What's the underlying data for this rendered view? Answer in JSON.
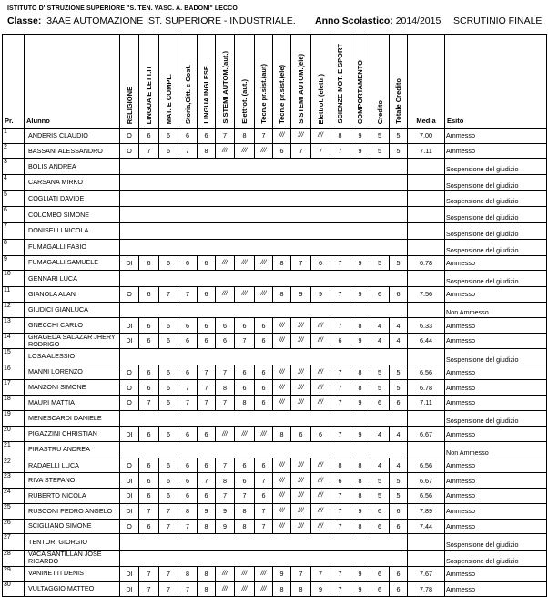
{
  "header": {
    "school": "ISTITUTO D'ISTRUZIONE SUPERIORE \"S. TEN. VASC. A. BADONI\" LECCO",
    "class_label": "Classe:",
    "class_value": "3AAE AUTOMAZIONE IST. SUPERIORE - INDUSTRIALE.",
    "year_label": "Anno Scolastico:",
    "year_value": "2014/2015",
    "title": "SCRUTINIO FINALE"
  },
  "columns": {
    "pr": "Pr.",
    "alunno": "Alunno",
    "subjects": [
      "RELIGIONE",
      "LINGUA E LETT.IT",
      "MAT. E COMPL.",
      "Storia,Citt. e Cost.",
      "LINGUA INGLESE.",
      "SISTEMI AUTOM.(aut.)",
      "Elettrot. (aut.)",
      "Tecn.e pr.sist.(aut)",
      "Tecn.e pr.sist.(ele)",
      "SISTEMI AUTOM.(ele)",
      "Elettrot. (elettr.)",
      "SCIENZE MOT. E SPORT",
      "COMPORTAMENTO",
      "Credito",
      "Totale Credito"
    ],
    "media": "Media",
    "esito": "Esito"
  },
  "rows": [
    {
      "n": "1",
      "name": "ANDERIS CLAUDIO",
      "grades": [
        "O",
        "6",
        "6",
        "6",
        "6",
        "7",
        "8",
        "7",
        "///",
        "///",
        "///",
        "8",
        "9",
        "5",
        "5"
      ],
      "media": "7.00",
      "esito": "Ammesso"
    },
    {
      "n": "2",
      "name": "BASSANI ALESSANDRO",
      "grades": [
        "O",
        "7",
        "6",
        "7",
        "8",
        "///",
        "///",
        "///",
        "6",
        "7",
        "7",
        "7",
        "9",
        "5",
        "5"
      ],
      "media": "7.11",
      "esito": "Ammesso"
    },
    {
      "n": "3",
      "name": "BOLIS ANDREA",
      "grades": null,
      "media": "",
      "esito": "Sospensione del giudizio"
    },
    {
      "n": "4",
      "name": "CARSANA MIRKO",
      "grades": null,
      "media": "",
      "esito": "Sospensione del giudizio"
    },
    {
      "n": "5",
      "name": "COGLIATI DAVIDE",
      "grades": null,
      "media": "",
      "esito": "Sospensione del giudizio"
    },
    {
      "n": "6",
      "name": "COLOMBO SIMONE",
      "grades": null,
      "media": "",
      "esito": "Sospensione del giudizio"
    },
    {
      "n": "7",
      "name": "DONISELLI NICOLA",
      "grades": null,
      "media": "",
      "esito": "Sospensione del giudizio"
    },
    {
      "n": "8",
      "name": "FUMAGALLI FABIO",
      "grades": null,
      "media": "",
      "esito": "Sospensione del giudizio"
    },
    {
      "n": "9",
      "name": "FUMAGALLI SAMUELE",
      "grades": [
        "DI",
        "6",
        "6",
        "6",
        "6",
        "///",
        "///",
        "///",
        "8",
        "7",
        "6",
        "7",
        "9",
        "5",
        "5"
      ],
      "media": "6.78",
      "esito": "Ammesso"
    },
    {
      "n": "10",
      "name": "GENNARI LUCA",
      "grades": null,
      "media": "",
      "esito": "Sospensione del giudizio"
    },
    {
      "n": "11",
      "name": "GIANOLA ALAN",
      "grades": [
        "O",
        "6",
        "7",
        "7",
        "6",
        "///",
        "///",
        "///",
        "8",
        "9",
        "9",
        "7",
        "9",
        "6",
        "6"
      ],
      "media": "7.56",
      "esito": "Ammesso"
    },
    {
      "n": "12",
      "name": "GIUDICI GIANLUCA",
      "grades": null,
      "media": "",
      "esito": "Non Ammesso"
    },
    {
      "n": "13",
      "name": "GNECCHI CARLO",
      "grades": [
        "DI",
        "6",
        "6",
        "6",
        "6",
        "6",
        "6",
        "6",
        "///",
        "///",
        "///",
        "7",
        "8",
        "4",
        "4"
      ],
      "media": "6.33",
      "esito": "Ammesso"
    },
    {
      "n": "14",
      "name": "GRAGEDA SALAZAR JHERY RODRIGO",
      "grades": [
        "DI",
        "6",
        "6",
        "6",
        "6",
        "6",
        "7",
        "6",
        "///",
        "///",
        "///",
        "6",
        "9",
        "4",
        "4"
      ],
      "media": "6.44",
      "esito": "Ammesso"
    },
    {
      "n": "15",
      "name": "LOSA ALESSIO",
      "grades": null,
      "media": "",
      "esito": "Sospensione del giudizio"
    },
    {
      "n": "16",
      "name": "MANNI LORENZO",
      "grades": [
        "O",
        "6",
        "6",
        "6",
        "7",
        "7",
        "6",
        "6",
        "///",
        "///",
        "///",
        "7",
        "8",
        "5",
        "5"
      ],
      "media": "6.56",
      "esito": "Ammesso"
    },
    {
      "n": "17",
      "name": "MANZONI SIMONE",
      "grades": [
        "O",
        "6",
        "6",
        "7",
        "7",
        "8",
        "6",
        "6",
        "///",
        "///",
        "///",
        "7",
        "8",
        "5",
        "5"
      ],
      "media": "6.78",
      "esito": "Ammesso"
    },
    {
      "n": "18",
      "name": "MAURI MATTIA",
      "grades": [
        "O",
        "7",
        "6",
        "7",
        "7",
        "7",
        "8",
        "6",
        "///",
        "///",
        "///",
        "7",
        "9",
        "6",
        "6"
      ],
      "media": "7.11",
      "esito": "Ammesso"
    },
    {
      "n": "19",
      "name": "MENESCARDI DANIELE",
      "grades": null,
      "media": "",
      "esito": "Sospensione del giudizio"
    },
    {
      "n": "20",
      "name": "PIGAZZINI CHRISTIAN",
      "grades": [
        "DI",
        "6",
        "6",
        "6",
        "6",
        "///",
        "///",
        "///",
        "8",
        "6",
        "6",
        "7",
        "9",
        "4",
        "4"
      ],
      "media": "6.67",
      "esito": "Ammesso"
    },
    {
      "n": "21",
      "name": "PIRASTRU ANDREA",
      "grades": null,
      "media": "",
      "esito": "Non Ammesso"
    },
    {
      "n": "22",
      "name": "RADAELLI LUCA",
      "grades": [
        "O",
        "6",
        "6",
        "6",
        "6",
        "7",
        "6",
        "6",
        "///",
        "///",
        "///",
        "8",
        "8",
        "4",
        "4"
      ],
      "media": "6.56",
      "esito": "Ammesso"
    },
    {
      "n": "23",
      "name": "RIVA STEFANO",
      "grades": [
        "DI",
        "6",
        "6",
        "6",
        "7",
        "8",
        "6",
        "7",
        "///",
        "///",
        "///",
        "6",
        "8",
        "5",
        "5"
      ],
      "media": "6.67",
      "esito": "Ammesso"
    },
    {
      "n": "24",
      "name": "RUBERTO NICOLA",
      "grades": [
        "DI",
        "6",
        "6",
        "6",
        "6",
        "7",
        "7",
        "6",
        "///",
        "///",
        "///",
        "7",
        "8",
        "5",
        "5"
      ],
      "media": "6.56",
      "esito": "Ammesso"
    },
    {
      "n": "25",
      "name": "RUSCONI PEDRO ANGELO",
      "grades": [
        "DI",
        "7",
        "7",
        "8",
        "9",
        "9",
        "8",
        "7",
        "///",
        "///",
        "///",
        "7",
        "9",
        "6",
        "6"
      ],
      "media": "7.89",
      "esito": "Ammesso"
    },
    {
      "n": "26",
      "name": "SCIGLIANO SIMONE",
      "grades": [
        "O",
        "6",
        "7",
        "7",
        "8",
        "9",
        "8",
        "7",
        "///",
        "///",
        "///",
        "7",
        "8",
        "6",
        "6"
      ],
      "media": "7.44",
      "esito": "Ammesso"
    },
    {
      "n": "27",
      "name": "TENTORI GIORGIO",
      "grades": null,
      "media": "",
      "esito": "Sospensione del giudizio"
    },
    {
      "n": "28",
      "name": "VACA SANTILLAN JOSE RICARDO",
      "grades": null,
      "media": "",
      "esito": "Sospensione del giudizio"
    },
    {
      "n": "29",
      "name": "VANINETTI DENIS",
      "grades": [
        "DI",
        "7",
        "7",
        "8",
        "8",
        "///",
        "///",
        "///",
        "9",
        "7",
        "7",
        "7",
        "9",
        "6",
        "6"
      ],
      "media": "7.67",
      "esito": "Ammesso"
    },
    {
      "n": "30",
      "name": "VULTAGGIO MATTEO",
      "grades": [
        "DI",
        "7",
        "7",
        "7",
        "8",
        "///",
        "///",
        "///",
        "8",
        "8",
        "9",
        "7",
        "9",
        "6",
        "6"
      ],
      "media": "7.78",
      "esito": "Ammesso"
    }
  ]
}
